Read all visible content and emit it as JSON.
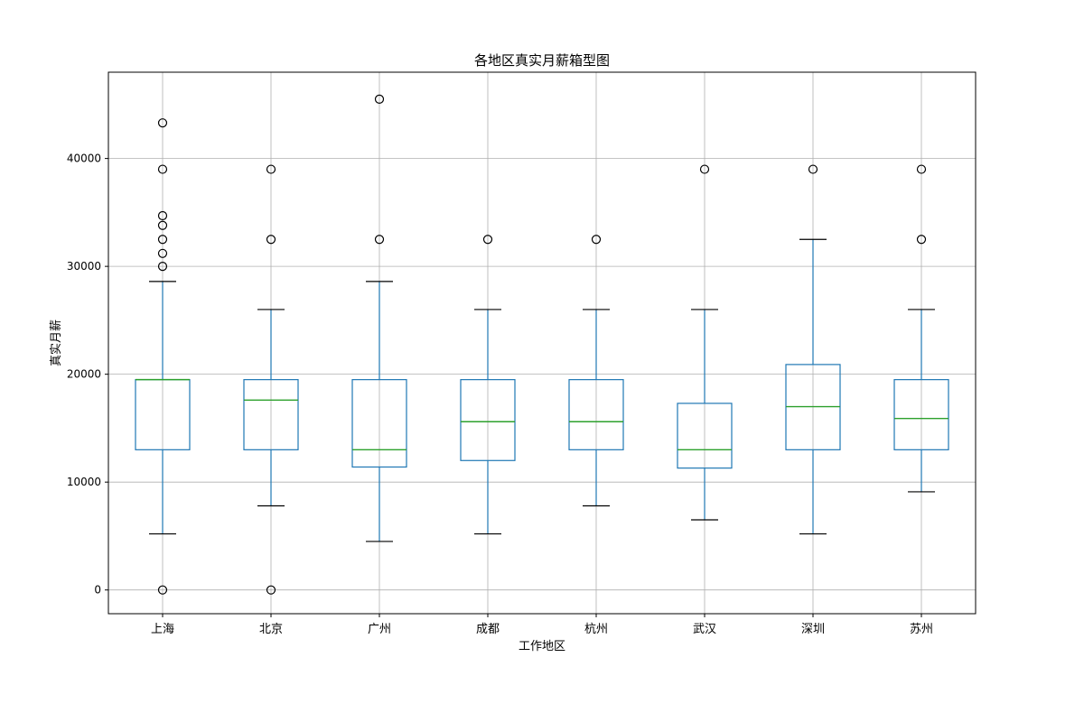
{
  "chart_data": {
    "type": "box",
    "title": "各地区真实月薪箱型图",
    "xlabel": "工作地区",
    "ylabel": "真实月薪",
    "categories": [
      "上海",
      "北京",
      "广州",
      "成都",
      "杭州",
      "武汉",
      "深圳",
      "苏州"
    ],
    "ylim": [
      -2200,
      48000
    ],
    "yticks": [
      0,
      10000,
      20000,
      30000,
      40000
    ],
    "grid": true,
    "colors": {
      "box": "#1f77b4",
      "median": "#2ca02c",
      "cap": "#000000",
      "flier": "#000000",
      "grid": "#b0b0b0"
    },
    "boxes": [
      {
        "name": "上海",
        "whisker_low": 5200,
        "q1": 13000,
        "median": 19500,
        "q3": 19500,
        "whisker_high": 28600,
        "fliers": [
          0,
          30000,
          31200,
          32500,
          33800,
          34700,
          39000,
          43300
        ]
      },
      {
        "name": "北京",
        "whisker_low": 7800,
        "q1": 13000,
        "median": 17600,
        "q3": 19500,
        "whisker_high": 26000,
        "fliers": [
          0,
          32500,
          39000
        ]
      },
      {
        "name": "广州",
        "whisker_low": 4500,
        "q1": 11400,
        "median": 13000,
        "q3": 19500,
        "whisker_high": 28600,
        "fliers": [
          32500,
          45500
        ]
      },
      {
        "name": "成都",
        "whisker_low": 5200,
        "q1": 12000,
        "median": 15600,
        "q3": 19500,
        "whisker_high": 26000,
        "fliers": [
          32500
        ]
      },
      {
        "name": "杭州",
        "whisker_low": 7800,
        "q1": 13000,
        "median": 15600,
        "q3": 19500,
        "whisker_high": 26000,
        "fliers": [
          32500
        ]
      },
      {
        "name": "武汉",
        "whisker_low": 6500,
        "q1": 11300,
        "median": 13000,
        "q3": 17300,
        "whisker_high": 26000,
        "fliers": [
          39000
        ]
      },
      {
        "name": "深圳",
        "whisker_low": 5200,
        "q1": 13000,
        "median": 17000,
        "q3": 20900,
        "whisker_high": 32500,
        "fliers": [
          39000
        ]
      },
      {
        "name": "苏州",
        "whisker_low": 9100,
        "q1": 13000,
        "median": 15900,
        "q3": 19500,
        "whisker_high": 26000,
        "fliers": [
          32500,
          39000
        ]
      }
    ]
  }
}
